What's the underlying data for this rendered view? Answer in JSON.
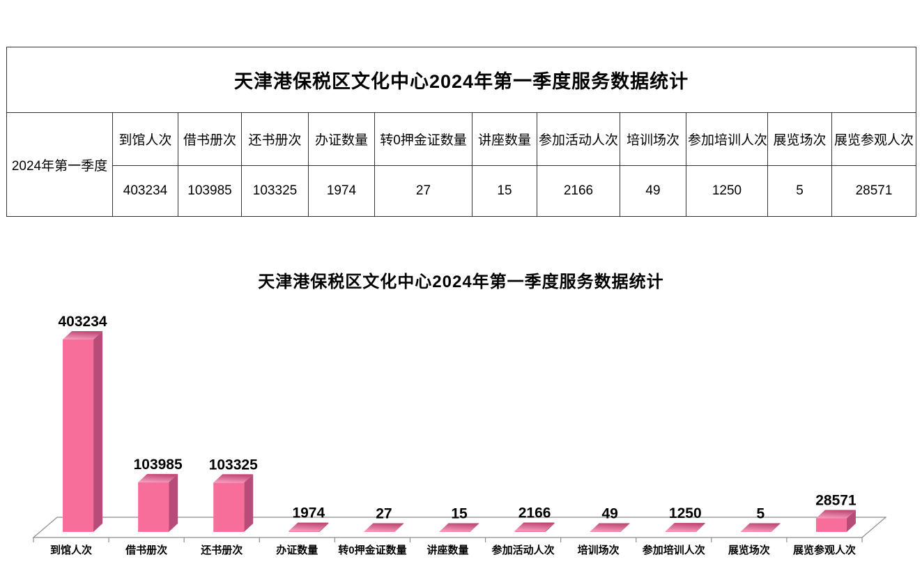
{
  "page": {
    "background": "#ffffff"
  },
  "table": {
    "title": "天津港保税区文化中心2024年第一季度服务数据统计",
    "row_label": "2024年第一季度",
    "columns": [
      "到馆人次",
      "借书册次",
      "还书册次",
      "办证数量",
      "转0押金证数量",
      "讲座数量",
      "参加活动人次",
      "培训场次",
      "参加培训人次",
      "展览场次",
      "展览参观人次"
    ],
    "values": [
      "403234",
      "103985",
      "103325",
      "1974",
      "27",
      "15",
      "2166",
      "49",
      "1250",
      "5",
      "28571"
    ]
  },
  "chart": {
    "title": "天津港保税区文化中心2024年第一季度服务数据统计"
  },
  "chart_data": {
    "type": "bar",
    "style": "3d-column",
    "title": "天津港保税区文化中心2024年第一季度服务数据统计",
    "categories": [
      "到馆人次",
      "借书册次",
      "还书册次",
      "办证数量",
      "转0押金证数量",
      "讲座数量",
      "参加活动人次",
      "培训场次",
      "参加培训人次",
      "展览场次",
      "展览参观人次"
    ],
    "values": [
      403234,
      103985,
      103325,
      1974,
      27,
      15,
      2166,
      49,
      1250,
      5,
      28571
    ],
    "data_labels": true,
    "legend": "none",
    "grid": false,
    "value_axis_visible": false,
    "ylim": [
      0,
      403234
    ],
    "xlabel": "",
    "ylabel": "",
    "colors": {
      "bar_front": "#f76e9b",
      "bar_top_light": "#f8a2c2",
      "bar_top_dark": "#c24a77",
      "bar_side": "#b84c78",
      "axis": "#8c8c8c",
      "label_text": "#000000"
    }
  }
}
